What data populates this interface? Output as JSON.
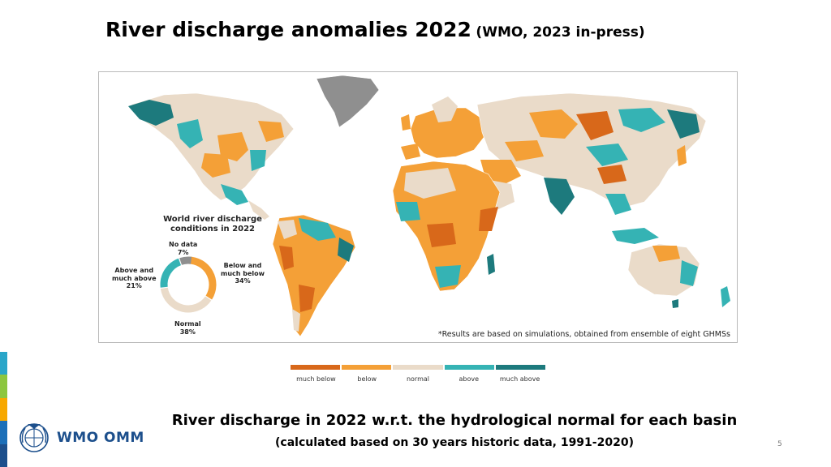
{
  "slide": {
    "title": "River discharge anomalies 2022",
    "title_source": "(WMO, 2023 in-press)",
    "caption_main": "River discharge in 2022 w.r.t. the hydrological normal for each basin",
    "caption_sub": "(calculated based on 30 years historic data, 1991-2020)",
    "page_number": "5",
    "logo_text": "WMO OMM",
    "logo_icon": "wmo-emblem-icon"
  },
  "map": {
    "note": "*Results are based on simulations, obtained from ensemble of eight GHMSs",
    "colors": {
      "much_below": "#d8681a",
      "below": "#f4a037",
      "normal": "#eadbc9",
      "above": "#35b3b4",
      "much_above": "#1d7a7d",
      "no_data": "#8f8f8f"
    }
  },
  "donut": {
    "title_line1": "World river discharge",
    "title_line2": "conditions in 2022",
    "segments": [
      {
        "name": "Below and much below",
        "line1": "Below and",
        "line2": "much below",
        "percent": 34,
        "pct_label": "34%",
        "color": "#f4a037"
      },
      {
        "name": "Normal",
        "line1": "Normal",
        "line2": "",
        "percent": 38,
        "pct_label": "38%",
        "color": "#eadbc9"
      },
      {
        "name": "Above and much above",
        "line1": "Above and",
        "line2": "much above",
        "percent": 21,
        "pct_label": "21%",
        "color": "#35b3b4"
      },
      {
        "name": "No data",
        "line1": "No data",
        "line2": "",
        "percent": 7,
        "pct_label": "7%",
        "color": "#8f8f8f"
      }
    ]
  },
  "legend": {
    "items": [
      {
        "label": "much below",
        "color": "#d8681a"
      },
      {
        "label": "below",
        "color": "#f4a037"
      },
      {
        "label": "normal",
        "color": "#eadbc9"
      },
      {
        "label": "above",
        "color": "#35b3b4"
      },
      {
        "label": "much above",
        "color": "#1d7a7d"
      }
    ]
  },
  "side_stripes": [
    "#2aa6c9",
    "#8dc63f",
    "#f7a800",
    "#1c6fb8",
    "#1c4f8c"
  ]
}
